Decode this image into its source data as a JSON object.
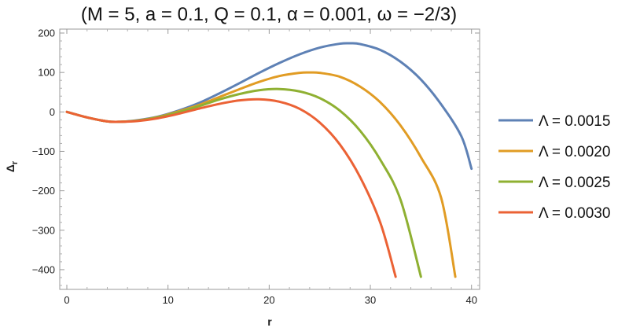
{
  "chart_data": {
    "type": "line",
    "title": "(M = 5, a = 0.1, Q = 0.1, α = 0.001, ω = −2/3)",
    "xlabel": "r",
    "ylabel": "Δ",
    "ylabel_subscript": "r",
    "xlim": [
      -0.7,
      40.8
    ],
    "ylim": [
      -450,
      210
    ],
    "xticks": [
      0,
      10,
      20,
      30,
      40
    ],
    "yticks": [
      200,
      100,
      0,
      -100,
      -200,
      -300,
      -400
    ],
    "grid": false,
    "legend_position": "right",
    "series": [
      {
        "name": "Λ = 0.0015",
        "color": "#5E81B5",
        "x": [
          0,
          2,
          4,
          5.3,
          7,
          9,
          11,
          13,
          15,
          17,
          19,
          21,
          23,
          25,
          27,
          28,
          29,
          31,
          33,
          35,
          37,
          39,
          40
        ],
        "y": [
          0,
          -14,
          -24,
          -25,
          -21,
          -12,
          3,
          22,
          46,
          72,
          99,
          124,
          146,
          163,
          173,
          174,
          172,
          157,
          127,
          82,
          19,
          -62,
          -144
        ]
      },
      {
        "name": "Λ = 0.0020",
        "color": "#E19C24",
        "x": [
          0,
          2,
          4,
          5.3,
          7,
          9,
          11,
          13,
          15,
          17,
          19,
          21,
          23,
          24,
          25,
          27,
          29,
          31,
          33,
          35,
          37,
          38.4
        ],
        "y": [
          0,
          -14,
          -24,
          -25,
          -22,
          -13,
          1,
          17,
          37,
          57,
          76,
          91,
          99,
          100,
          99,
          89,
          64,
          24,
          -35,
          -115,
          -218,
          -418
        ]
      },
      {
        "name": "Λ = 0.0025",
        "color": "#8FB032",
        "x": [
          0,
          2,
          4,
          5.3,
          7,
          9,
          11,
          13,
          15,
          17,
          19,
          21,
          23,
          25,
          27,
          29,
          31,
          33,
          35
        ],
        "y": [
          0,
          -14,
          -24,
          -25,
          -22,
          -14,
          -1,
          14,
          31,
          45,
          55,
          58,
          52,
          35,
          3,
          -48,
          -122,
          -224,
          -418
        ]
      },
      {
        "name": "Λ = 0.0030",
        "color": "#EB6235",
        "x": [
          0,
          2,
          4,
          5.3,
          7,
          9,
          11,
          13,
          15,
          17,
          19,
          21,
          23,
          25,
          27,
          29,
          31,
          32.5
        ],
        "y": [
          0,
          -14,
          -24,
          -25,
          -23,
          -16,
          -5,
          8,
          20,
          29,
          32,
          26,
          8,
          -27,
          -83,
          -166,
          -282,
          -418
        ]
      }
    ]
  }
}
